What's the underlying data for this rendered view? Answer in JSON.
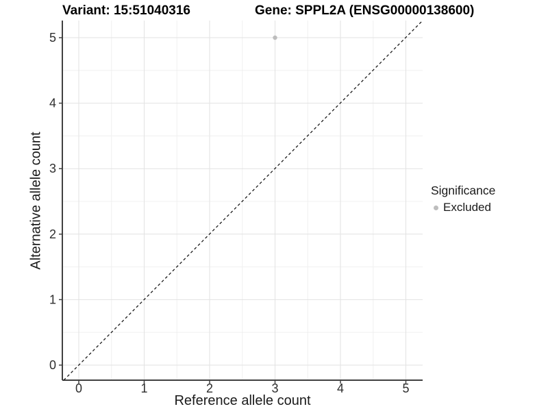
{
  "page": {
    "background": "#ffffff"
  },
  "header": {
    "variant_title": "Variant: 15:51040316",
    "gene_title": "Gene: SPPL2A (ENSG00000138600)"
  },
  "legend": {
    "title": "Significance",
    "items": [
      {
        "label": "Excluded",
        "color": "#bdbdbd"
      }
    ]
  },
  "chart_data": {
    "type": "scatter",
    "xlabel": "Reference allele count",
    "ylabel": "Alternative allele count",
    "xlim": [
      -0.25,
      5.25
    ],
    "ylim": [
      -0.25,
      5.25
    ],
    "x_ticks": [
      0,
      1,
      2,
      3,
      4,
      5
    ],
    "y_ticks": [
      0,
      1,
      2,
      3,
      4,
      5
    ],
    "grid": {
      "major": true,
      "minor": true,
      "major_color": "#e2e2e2",
      "minor_color": "#f0f0f0"
    },
    "reference_line": {
      "type": "identity",
      "style": "dashed",
      "color": "#1a1a1a"
    },
    "series": [
      {
        "name": "Excluded",
        "color": "#bdbdbd",
        "points": [
          {
            "x": 3,
            "y": 5
          }
        ]
      }
    ],
    "axis_color": "#404040",
    "tick_label_color": "#2e2e2e",
    "legend_position": "right"
  }
}
